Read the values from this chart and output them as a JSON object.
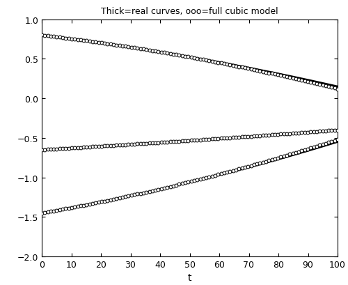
{
  "title": "Thick=real curves, ooo=full cubic model",
  "xlabel": "t",
  "t_start": 0,
  "t_end": 100,
  "n_points": 500,
  "n_circles": 100,
  "xlim": [
    0,
    100
  ],
  "ylim": [
    -2,
    1
  ],
  "yticks": [
    -2,
    -1.5,
    -1,
    -0.5,
    0,
    0.5,
    1
  ],
  "xticks": [
    0,
    10,
    20,
    30,
    40,
    50,
    60,
    70,
    80,
    90,
    100
  ],
  "line_color": "#000000",
  "line_width": 2.0,
  "circle_color": "#000000",
  "circle_size": 3.5,
  "circle_edge_width": 0.7,
  "figsize": [
    5.0,
    4.1
  ],
  "dpi": 100
}
